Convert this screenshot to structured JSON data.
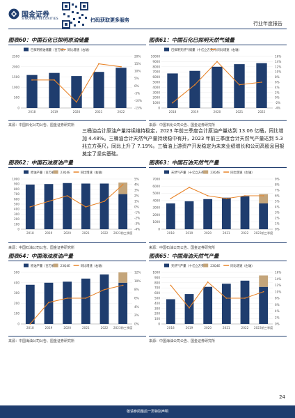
{
  "header": {
    "company_cn": "国金证券",
    "company_en": "SINOLINK SECURITIES",
    "scan_text": "扫码获取更多服务",
    "report_type": "行业年度报告"
  },
  "paragraph": "三桶油合计原油产量持续维持稳定，2023 年前三季度合计原油产量达到 13.06 亿桶，同比增加 4.48%。三桶油合计天然气产量持续稳中有升，2023 年前三季度合计天然气产量达到 5.3 兆立方英尺，同比上升了 7.19%。三桶油上游资产开发稳定为未来业绩增长和公司高股息回报奠定了坚实基础。",
  "footer": {
    "disclaimer": "敬请参阅最后一页特别声明",
    "page_number": "24"
  },
  "colors": {
    "bar": "#1f3d6e",
    "bar_2023": "#c4a57a",
    "line": "#e8852b",
    "rule": "#1f3d6e"
  },
  "charts": [
    {
      "id": "60",
      "title": "图表60：中国石化已探明原油储量",
      "source": "来源：中国石化公司公告、国金证券研究所",
      "chart_data": {
        "type": "bar",
        "categories": [
          "2018",
          "2019",
          "2020",
          "2021",
          "2022"
        ],
        "series": [
          {
            "name": "已探明原油储量（百万桶）",
            "values": [
              1600,
              1700,
              1550,
              1750,
              1950
            ]
          },
          {
            "name": "同比增速（右轴）",
            "axis": "right",
            "values": [
              0.04,
              0.04,
              -0.11,
              0.15,
              0.13
            ]
          }
        ],
        "ylim": [
          0,
          2500
        ],
        "yticks": [
          "0",
          "500",
          "1000",
          "1500",
          "2000",
          "2500"
        ],
        "ylim_right": [
          -0.15,
          0.2
        ],
        "yticks_right": [
          "-15%",
          "-10%",
          "-5%",
          "0%",
          "5%",
          "10%",
          "15%",
          "20%"
        ],
        "legend": "top-left"
      }
    },
    {
      "id": "61",
      "title": "图表61：中国石化已探明天然气储量",
      "source": "来源：中国石化公司公告、国金证券研究所",
      "chart_data": {
        "type": "bar",
        "categories": [
          "2018",
          "2019",
          "2020",
          "2021",
          "2022"
        ],
        "series": [
          {
            "name": "已探明天然气储量（十亿立方英尺）",
            "values": [
              6700,
              7200,
              8000,
              8500,
              8700
            ]
          },
          {
            "name": "同比增速（右轴）",
            "axis": "right",
            "values": [
              -0.02,
              0.05,
              0.14,
              0.05,
              0.06
            ]
          }
        ],
        "ylim": [
          0,
          10000
        ],
        "yticks": [
          "0",
          "1000",
          "2000",
          "3000",
          "4000",
          "5000",
          "6000",
          "7000",
          "8000",
          "9000",
          "10000"
        ],
        "ylim_right": [
          -0.04,
          0.16
        ],
        "yticks_right": [
          "-4%",
          "-2%",
          "0%",
          "2%",
          "4%",
          "6%",
          "8%",
          "10%",
          "12%",
          "14%",
          "16%"
        ],
        "legend": "top-left"
      }
    },
    {
      "id": "62",
      "title": "图表62：中国石油原油产量",
      "source": "来源：中国石油公司公告、国金证券研究所",
      "chart_data": {
        "type": "bar",
        "categories": [
          "2018",
          "2019",
          "2020",
          "2021",
          "2022",
          "2023前三季度"
        ],
        "series": [
          {
            "name": "原油产量（百万桶）",
            "values": [
              890,
              900,
              920,
              910,
              910,
              700
            ]
          },
          {
            "name": "23Q4E",
            "stacked_on_last": true,
            "values": [
              null,
              null,
              null,
              null,
              null,
              230
            ]
          },
          {
            "name": "同比增速（右轴）",
            "axis": "right",
            "values": [
              0.0,
              0.01,
              0.02,
              0.0,
              0.01,
              0.04
            ]
          }
        ],
        "ylim": [
          0,
          1000
        ],
        "yticks": [
          "0",
          "100",
          "200",
          "300",
          "400",
          "500",
          "600",
          "700",
          "800",
          "900",
          "1000"
        ],
        "ylim_right": [
          -0.04,
          0.05
        ],
        "yticks_right": [
          "-4%",
          "-3%",
          "-2%",
          "-1%",
          "0%",
          "1%",
          "2%",
          "3%",
          "4%",
          "5%"
        ],
        "legend": "top-left"
      }
    },
    {
      "id": "63",
      "title": "图表63：中国石油天然气产量",
      "source": "来源：中国石油公司公告、国金证券研究所",
      "chart_data": {
        "type": "bar",
        "categories": [
          "2018",
          "2019",
          "2020",
          "2021",
          "2022",
          "2023前三季度"
        ],
        "series": [
          {
            "name": "天然气产量（十亿立方英尺）",
            "values": [
              3600,
              3900,
              4200,
              4400,
              4600,
              3600
            ]
          },
          {
            "name": "23Q4E",
            "stacked_on_last": true,
            "values": [
              null,
              null,
              null,
              null,
              null,
              1300
            ]
          },
          {
            "name": "同比增速（右轴）",
            "axis": "right",
            "values": [
              0.055,
              0.075,
              0.06,
              0.055,
              0.06,
              0.06
            ]
          }
        ],
        "ylim": [
          0,
          7000
        ],
        "yticks": [
          "0",
          "1000",
          "2000",
          "3000",
          "4000",
          "5000",
          "6000",
          "7000"
        ],
        "ylim_right": [
          0,
          0.09
        ],
        "yticks_right": [
          "0%",
          "1%",
          "2%",
          "3%",
          "4%",
          "5%",
          "6%",
          "7%",
          "8%",
          "9%"
        ],
        "legend": "top-left"
      }
    },
    {
      "id": "64",
      "title": "图表64：中国海油原油产量",
      "source": "来源：中国海油公司公告、国金证券研究所",
      "chart_data": {
        "type": "bar",
        "categories": [
          "2018",
          "2019",
          "2020",
          "2021",
          "2022",
          "2023前三季度"
        ],
        "series": [
          {
            "name": "原油产量（百万桶）",
            "values": [
              380,
              400,
              410,
              440,
              480,
              400
            ]
          },
          {
            "name": "23Q4E",
            "stacked_on_last": true,
            "values": [
              null,
              null,
              null,
              null,
              null,
              100
            ]
          },
          {
            "name": "同比增速（右轴）",
            "axis": "right",
            "values": [
              0.0,
              0.05,
              0.06,
              0.06,
              0.08,
              0.09
            ]
          }
        ],
        "ylim": [
          0,
          500
        ],
        "yticks": [
          "0",
          "100",
          "200",
          "300",
          "400",
          "500"
        ],
        "ylim_right": [
          0,
          0.12
        ],
        "yticks_right": [
          "0%",
          "2%",
          "4%",
          "6%",
          "8%",
          "10%",
          "12%"
        ],
        "legend": "top-left"
      }
    },
    {
      "id": "65",
      "title": "图表65：中国海油天然气产量",
      "source": "来源：中国海油公司公告、国金证券研究所",
      "chart_data": {
        "type": "bar",
        "categories": [
          "2018",
          "2019",
          "2020",
          "2021",
          "2022",
          "2023前三季度"
        ],
        "series": [
          {
            "name": "天然气产量（十亿立方英尺）",
            "values": [
              480,
              580,
              720,
              780,
              840,
              720
            ]
          },
          {
            "name": "23Q4E",
            "stacked_on_last": true,
            "values": [
              null,
              null,
              null,
              null,
              null,
              220
            ]
          },
          {
            "name": "同比增速（右轴）",
            "axis": "right",
            "values": [
              0.12,
              0.05,
              0.13,
              0.08,
              0.08,
              0.1
            ]
          }
        ],
        "ylim": [
          0,
          1000
        ],
        "yticks": [
          "0",
          "100",
          "200",
          "300",
          "400",
          "500",
          "600",
          "700",
          "800",
          "900",
          "1000"
        ],
        "ylim_right": [
          0,
          0.16
        ],
        "yticks_right": [
          "0%",
          "2%",
          "4%",
          "6%",
          "8%",
          "10%",
          "12%",
          "14%",
          "16%"
        ],
        "legend": "top-left"
      }
    }
  ]
}
